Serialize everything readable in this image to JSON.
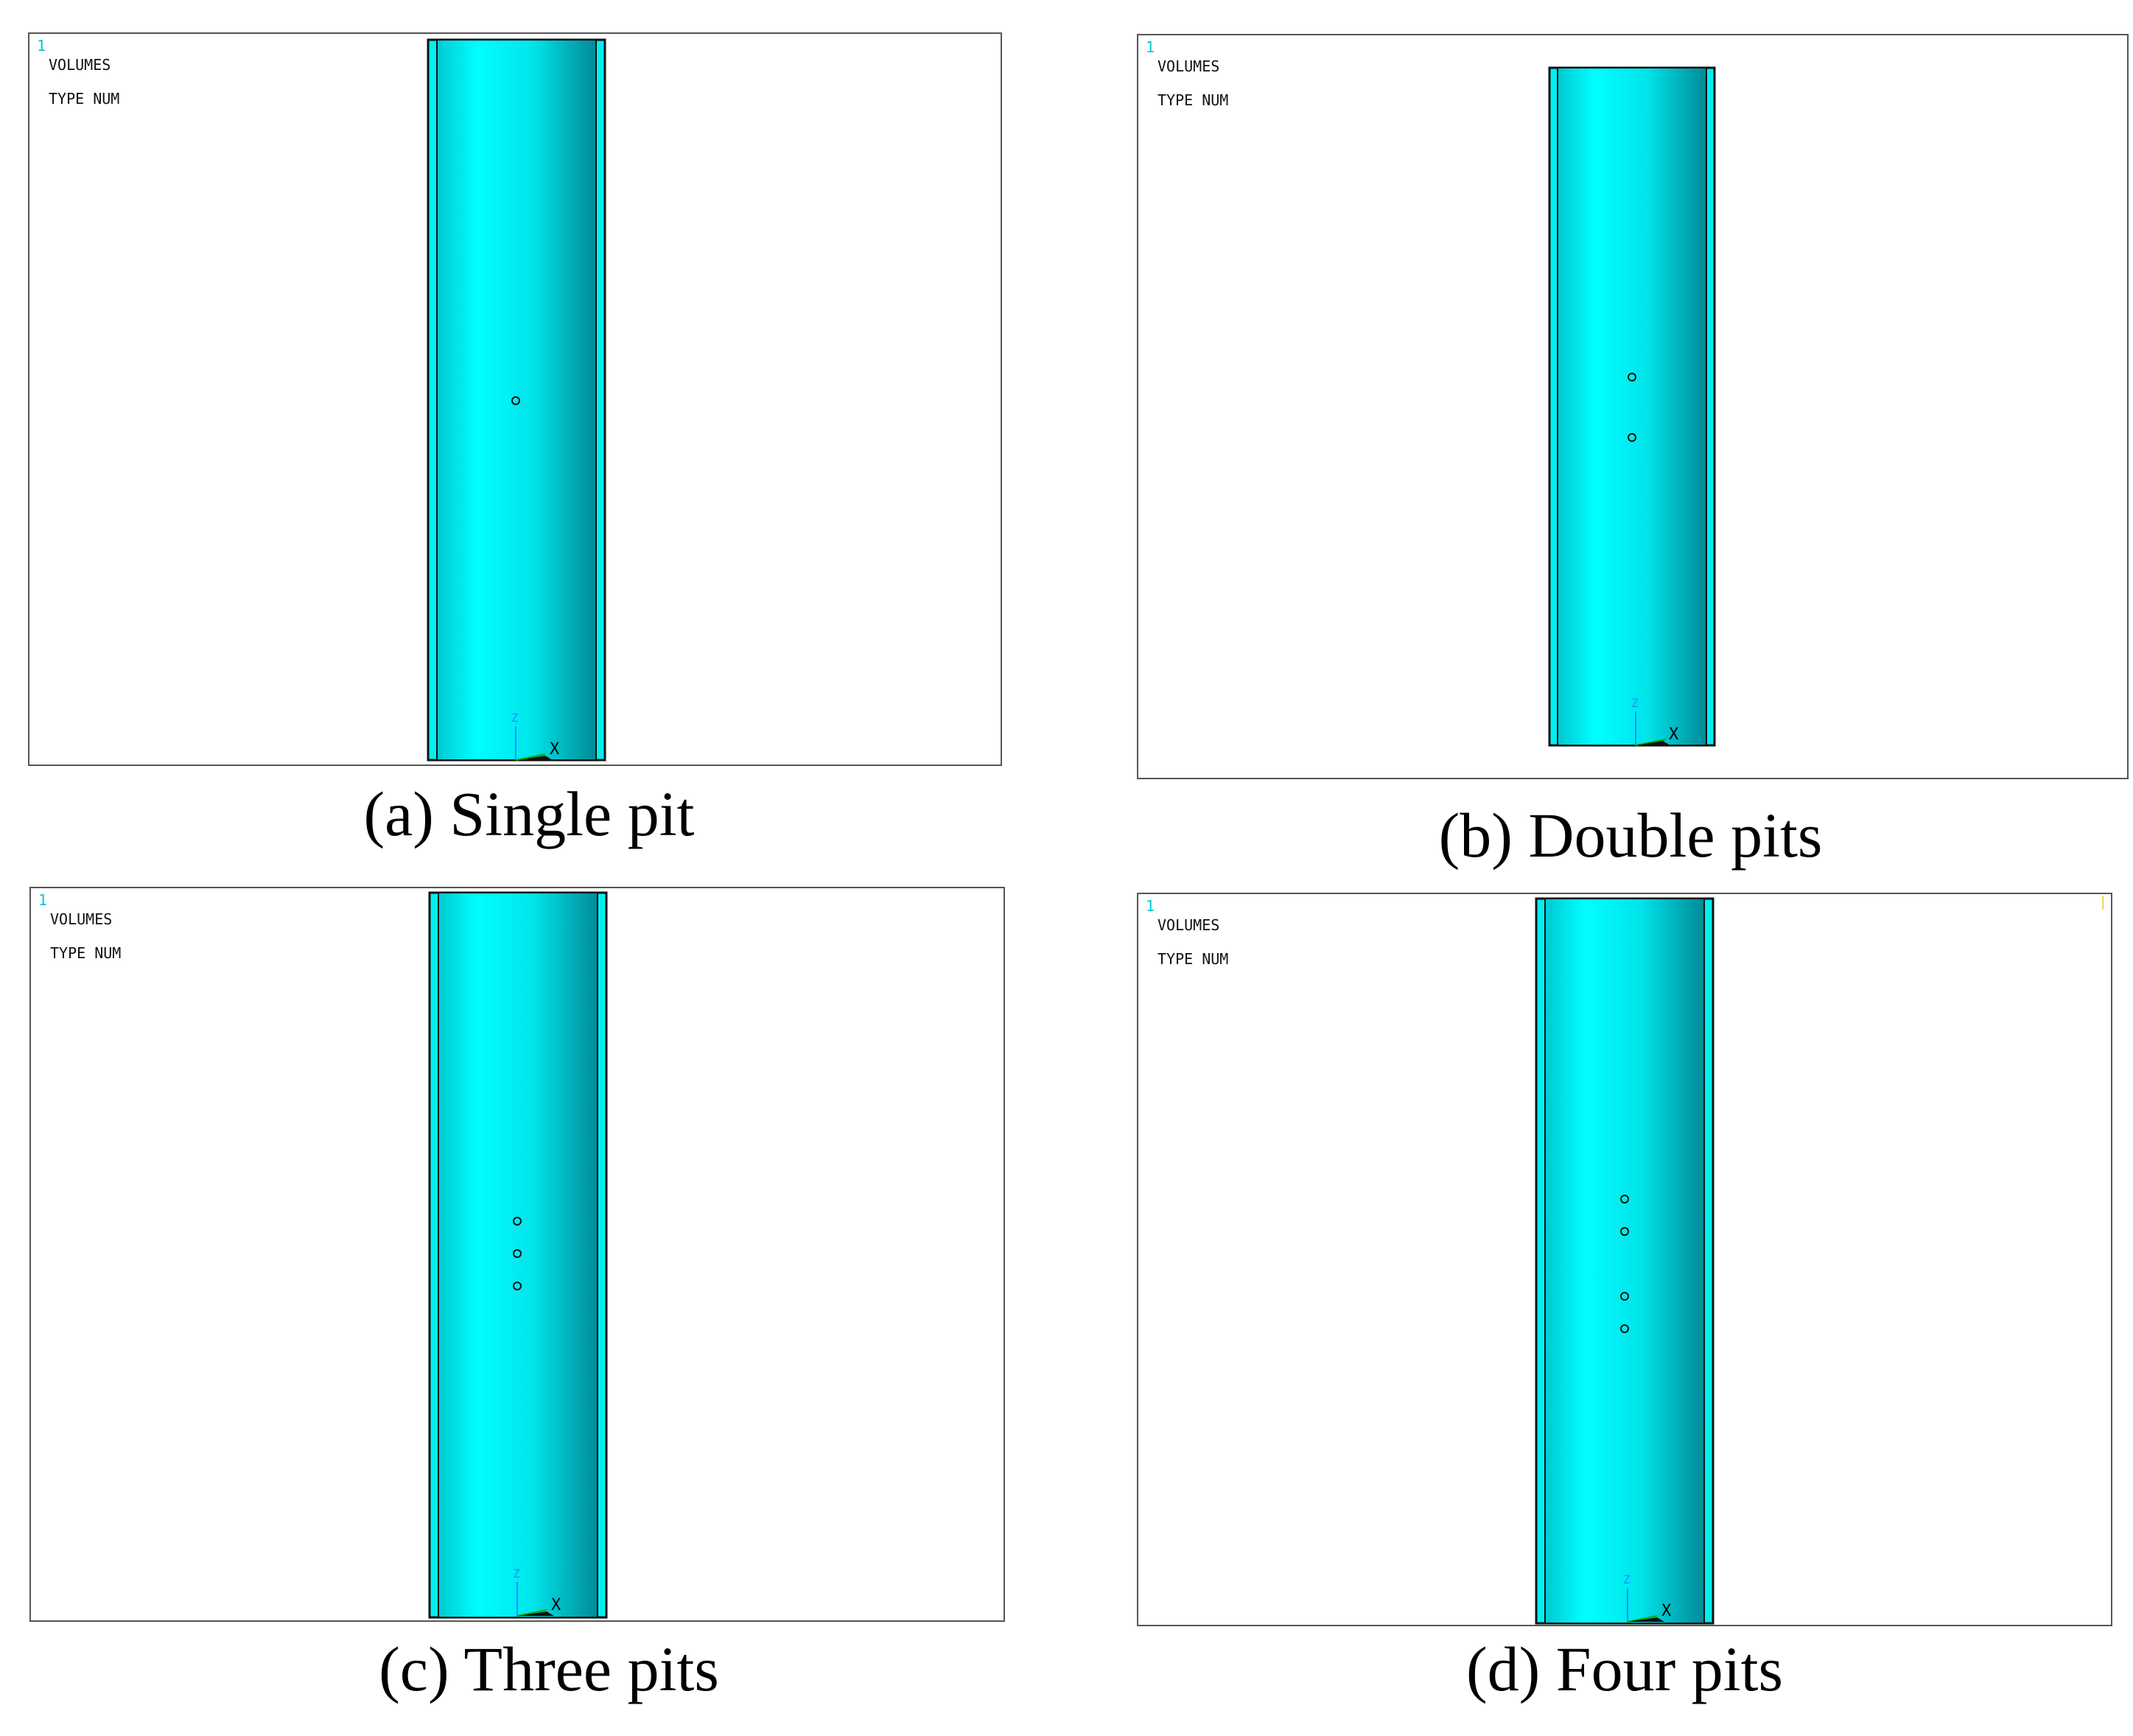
{
  "panels": [
    {
      "id": "a",
      "window_number": "1",
      "label_line1": "VOLUMES",
      "label_line2": "TYPE NUM",
      "caption": "(a) Single pit",
      "pit_count": 1,
      "axis_z": "Z",
      "axis_x": "X"
    },
    {
      "id": "b",
      "window_number": "1",
      "label_line1": "VOLUMES",
      "label_line2": "TYPE NUM",
      "caption": "(b) Double pits",
      "pit_count": 2,
      "axis_z": "Z",
      "axis_x": "X"
    },
    {
      "id": "c",
      "window_number": "1",
      "label_line1": "VOLUMES",
      "label_line2": "TYPE NUM",
      "caption": "(c) Three pits",
      "pit_count": 3,
      "axis_z": "Z",
      "axis_x": "X"
    },
    {
      "id": "d",
      "window_number": "1",
      "label_line1": "VOLUMES",
      "label_line2": "TYPE NUM",
      "caption": "(d) Four pits",
      "pit_count": 4,
      "axis_z": "Z",
      "axis_x": "X"
    }
  ],
  "colors": {
    "cylinder": "#00f0f0",
    "cylinder_dark": "#008a96",
    "outline": "#111111",
    "axis_z": "#1e90ff",
    "window_number": "#00c8d8"
  }
}
